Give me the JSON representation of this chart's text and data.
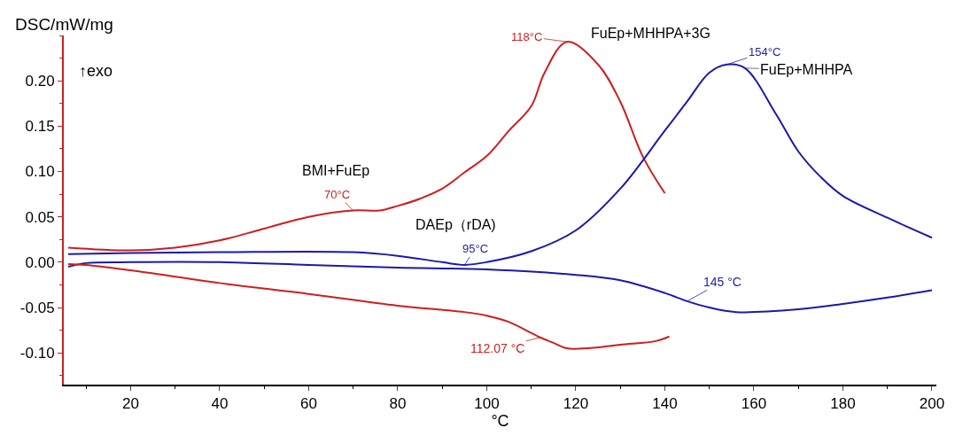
{
  "chart_data": {
    "type": "line",
    "xlabel": "°C",
    "ylabel": "DSC/mW/mg",
    "xlim": [
      5,
      201
    ],
    "ylim": [
      -0.135,
      0.25
    ],
    "xticks": [
      20,
      40,
      60,
      80,
      100,
      120,
      140,
      160,
      180,
      200
    ],
    "yticks": [
      {
        "value": -0.1,
        "label": "-0.10"
      },
      {
        "value": -0.05,
        "label": "-0.05"
      },
      {
        "value": 0,
        "label": "0.00"
      },
      {
        "value": 0.05,
        "label": "0.05"
      },
      {
        "value": 0.1,
        "label": "0.10"
      },
      {
        "value": 0.15,
        "label": "0.15"
      },
      {
        "value": 0.2,
        "label": "0.20"
      }
    ],
    "marker": "none",
    "line_style": "solid",
    "series": [
      {
        "color": "#cc1f1f",
        "x": [
          6,
          20,
          30,
          40,
          50,
          60,
          70,
          76,
          80,
          85,
          90,
          95,
          100,
          105,
          110,
          113,
          118,
          125,
          130,
          135,
          140
        ],
        "values": [
          0.016,
          0.013,
          0.016,
          0.024,
          0.037,
          0.05,
          0.057,
          0.057,
          0.062,
          0.07,
          0.081,
          0.099,
          0.117,
          0.145,
          0.172,
          0.209,
          0.243,
          0.218,
          0.177,
          0.117,
          0.076
        ]
      },
      {
        "color": "#1a1aaa",
        "x": [
          6,
          20,
          40,
          70,
          80,
          90,
          95,
          100,
          110,
          120,
          130,
          140,
          145,
          150,
          154,
          158,
          165,
          170,
          175,
          180,
          190,
          200
        ],
        "values": [
          0.009,
          0.01,
          0.011,
          0.011,
          0.007,
          0.0,
          -0.003,
          0.0,
          0.012,
          0.035,
          0.081,
          0.145,
          0.177,
          0.209,
          0.218,
          0.214,
          0.163,
          0.122,
          0.094,
          0.073,
          0.049,
          0.027
        ]
      },
      {
        "color": "#1a1aaa",
        "x": [
          6,
          10,
          20,
          40,
          60,
          80,
          100,
          120,
          130,
          140,
          145,
          150,
          156,
          170,
          180,
          190,
          200
        ],
        "values": [
          -0.005,
          -0.001,
          0.0,
          0.0,
          -0.003,
          -0.006,
          -0.008,
          -0.014,
          -0.02,
          -0.034,
          -0.043,
          -0.05,
          -0.055,
          -0.052,
          -0.046,
          -0.039,
          -0.031
        ]
      },
      {
        "color": "#cc1f1f",
        "x": [
          6,
          10,
          20,
          40,
          60,
          80,
          95,
          100,
          105,
          110,
          112,
          115,
          118,
          125,
          130,
          138,
          141
        ],
        "values": [
          -0.002,
          -0.003,
          -0.009,
          -0.023,
          -0.035,
          -0.048,
          -0.055,
          -0.059,
          -0.066,
          -0.078,
          -0.083,
          -0.089,
          -0.095,
          -0.094,
          -0.091,
          -0.087,
          -0.082
        ]
      }
    ],
    "annotations": [
      "↑exo",
      {
        "text": "BMI+FuEp",
        "x": 70,
        "y": 0.057
      },
      {
        "text": "70°C",
        "x": 70,
        "y": 0.057
      },
      {
        "text": "118°C",
        "x": 118,
        "y": 0.243
      },
      {
        "text": "FuEp+MHHPA+3G",
        "x": 118,
        "y": 0.243
      },
      {
        "text": "154°C",
        "x": 154,
        "y": 0.218
      },
      {
        "text": "FuEp+MHHPA",
        "x": 158,
        "y": 0.214
      },
      {
        "text": "DAEp（rDA)",
        "x": 95,
        "y": -0.003
      },
      {
        "text": "95°C",
        "x": 95,
        "y": -0.003
      },
      {
        "text": "145 °C",
        "x": 145,
        "y": -0.043
      },
      {
        "text": "112.07 °C",
        "x": 112,
        "y": -0.083
      }
    ]
  }
}
